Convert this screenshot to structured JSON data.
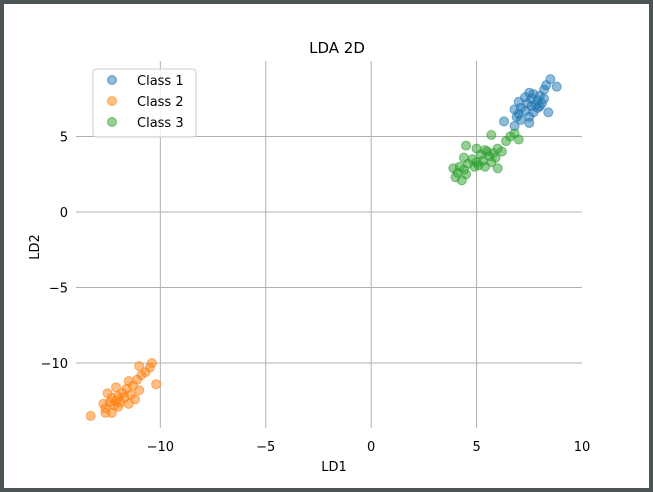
{
  "chart_data": {
    "type": "scatter",
    "title": "LDA 2D",
    "xlabel": "LD1",
    "ylabel": "LD2",
    "xlim": [
      -14,
      10
    ],
    "ylim": [
      -14.3,
      10
    ],
    "xticks": [
      -10,
      -5,
      0,
      5,
      10
    ],
    "xtick_labels": [
      "−10",
      "−5",
      "0",
      "5",
      "10"
    ],
    "yticks": [
      5,
      0,
      -5,
      -10
    ],
    "ytick_labels": [
      "5",
      "0",
      "−5",
      "−10"
    ],
    "grid": true,
    "legend_position": "top-left",
    "series": [
      {
        "name": "Class 1",
        "color": "#1f77b4",
        "points": [
          [
            8.5,
            8.8
          ],
          [
            8.8,
            8.3
          ],
          [
            8.3,
            8.4
          ],
          [
            8.2,
            8.1
          ],
          [
            7.5,
            7.9
          ],
          [
            7.7,
            7.8
          ],
          [
            8.0,
            7.7
          ],
          [
            7.3,
            7.6
          ],
          [
            7.6,
            7.5
          ],
          [
            7.9,
            7.4
          ],
          [
            8.2,
            7.5
          ],
          [
            7.0,
            7.3
          ],
          [
            7.4,
            7.2
          ],
          [
            7.8,
            7.1
          ],
          [
            8.1,
            7.2
          ],
          [
            7.6,
            7.0
          ],
          [
            7.1,
            6.9
          ],
          [
            7.9,
            6.9
          ],
          [
            6.8,
            6.8
          ],
          [
            7.3,
            6.7
          ],
          [
            7.7,
            6.6
          ],
          [
            8.4,
            6.6
          ],
          [
            7.0,
            6.5
          ],
          [
            6.9,
            6.3
          ],
          [
            7.5,
            6.3
          ],
          [
            6.3,
            6.0
          ],
          [
            7.1,
            6.1
          ],
          [
            7.5,
            5.9
          ],
          [
            6.8,
            5.7
          ],
          [
            8.0,
            7.0
          ]
        ]
      },
      {
        "name": "Class 2",
        "color": "#ff7f0e",
        "points": [
          [
            -10.4,
            -10.0
          ],
          [
            -10.5,
            -10.3
          ],
          [
            -11.0,
            -10.2
          ],
          [
            -10.7,
            -10.6
          ],
          [
            -10.9,
            -10.8
          ],
          [
            -11.1,
            -11.1
          ],
          [
            -11.5,
            -11.2
          ],
          [
            -10.2,
            -11.4
          ],
          [
            -11.3,
            -11.5
          ],
          [
            -12.1,
            -11.6
          ],
          [
            -11.6,
            -11.7
          ],
          [
            -11.0,
            -11.8
          ],
          [
            -12.5,
            -12.0
          ],
          [
            -11.8,
            -12.0
          ],
          [
            -11.4,
            -12.1
          ],
          [
            -12.0,
            -12.2
          ],
          [
            -12.3,
            -12.3
          ],
          [
            -11.7,
            -12.3
          ],
          [
            -11.2,
            -12.4
          ],
          [
            -12.1,
            -12.5
          ],
          [
            -12.4,
            -12.6
          ],
          [
            -11.9,
            -12.6
          ],
          [
            -12.7,
            -12.7
          ],
          [
            -11.5,
            -12.7
          ],
          [
            -12.2,
            -12.8
          ],
          [
            -12.6,
            -13.0
          ],
          [
            -12.3,
            -13.3
          ],
          [
            -12.6,
            -13.3
          ],
          [
            -13.3,
            -13.5
          ],
          [
            -12.0,
            -12.9
          ]
        ]
      },
      {
        "name": "Class 3",
        "color": "#2ca02c",
        "points": [
          [
            6.8,
            5.2
          ],
          [
            5.7,
            5.1
          ],
          [
            6.6,
            5.0
          ],
          [
            6.4,
            4.7
          ],
          [
            7.0,
            4.8
          ],
          [
            4.5,
            4.4
          ],
          [
            5.0,
            4.2
          ],
          [
            6.0,
            4.2
          ],
          [
            5.5,
            4.0
          ],
          [
            6.2,
            4.0
          ],
          [
            5.2,
            3.8
          ],
          [
            5.6,
            3.7
          ],
          [
            5.9,
            3.6
          ],
          [
            4.4,
            3.6
          ],
          [
            4.8,
            3.5
          ],
          [
            5.3,
            3.4
          ],
          [
            5.0,
            3.3
          ],
          [
            5.7,
            3.3
          ],
          [
            4.6,
            3.2
          ],
          [
            5.1,
            3.1
          ],
          [
            4.2,
            3.0
          ],
          [
            4.9,
            3.0
          ],
          [
            5.4,
            3.0
          ],
          [
            3.9,
            2.9
          ],
          [
            4.4,
            2.8
          ],
          [
            6.0,
            2.9
          ],
          [
            4.1,
            2.6
          ],
          [
            4.5,
            2.5
          ],
          [
            4.0,
            2.3
          ],
          [
            4.3,
            2.1
          ],
          [
            5.8,
            3.9
          ],
          [
            5.4,
            4.1
          ]
        ]
      }
    ]
  }
}
